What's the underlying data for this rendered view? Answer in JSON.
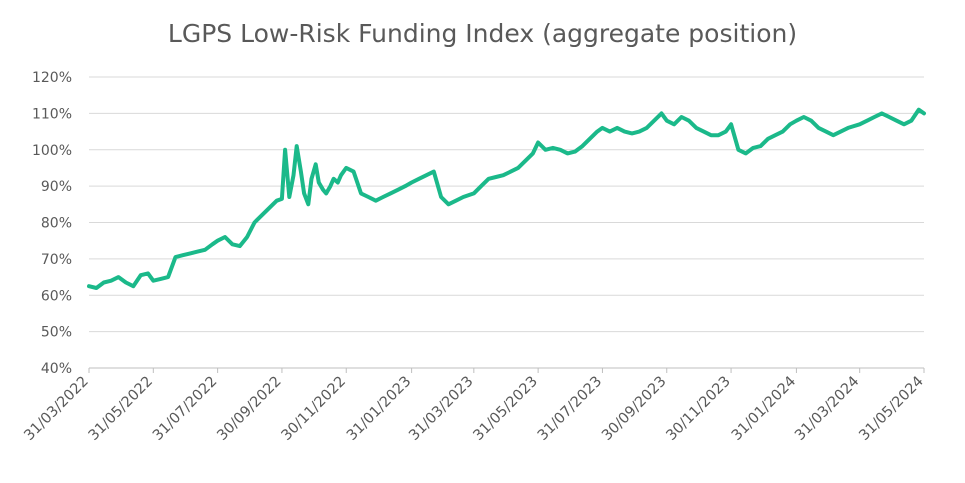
{
  "chart_data": {
    "type": "line",
    "title": "LGPS Low-Risk Funding Index (aggregate position)",
    "xlabel": "",
    "ylabel": "",
    "ylim": [
      40,
      120
    ],
    "y_ticks": [
      "40%",
      "50%",
      "60%",
      "70%",
      "80%",
      "90%",
      "100%",
      "110%",
      "120%"
    ],
    "x_ticks": [
      "31/03/2022",
      "31/05/2022",
      "31/07/2022",
      "30/09/2022",
      "30/11/2022",
      "31/01/2023",
      "31/03/2023",
      "31/05/2023",
      "31/07/2023",
      "30/09/2023",
      "30/11/2023",
      "31/01/2024",
      "31/03/2024",
      "31/05/2024"
    ],
    "grid": true,
    "legend": "none",
    "line_color": "#1bb98a",
    "series": [
      {
        "x": [
          "31/03/2022",
          "07/04/2022",
          "14/04/2022",
          "21/04/2022",
          "28/04/2022",
          "05/05/2022",
          "12/05/2022",
          "19/05/2022",
          "26/05/2022",
          "31/05/2022",
          "07/06/2022",
          "14/06/2022",
          "21/06/2022",
          "28/06/2022",
          "05/07/2022",
          "12/07/2022",
          "19/07/2022",
          "26/07/2022",
          "31/07/2022",
          "07/08/2022",
          "14/08/2022",
          "21/08/2022",
          "28/08/2022",
          "04/09/2022",
          "11/09/2022",
          "18/09/2022",
          "25/09/2022",
          "30/09/2022",
          "03/10/2022",
          "07/10/2022",
          "11/10/2022",
          "14/10/2022",
          "18/10/2022",
          "21/10/2022",
          "25/10/2022",
          "28/10/2022",
          "01/11/2022",
          "04/11/2022",
          "08/11/2022",
          "11/11/2022",
          "15/11/2022",
          "18/11/2022",
          "22/11/2022",
          "25/11/2022",
          "30/11/2022",
          "07/12/2022",
          "14/12/2022",
          "21/12/2022",
          "28/12/2022",
          "04/01/2023",
          "11/01/2023",
          "18/01/2023",
          "25/01/2023",
          "31/01/2023",
          "07/02/2023",
          "14/02/2023",
          "21/02/2023",
          "28/02/2023",
          "07/03/2023",
          "14/03/2023",
          "21/03/2023",
          "31/03/2023",
          "07/04/2023",
          "14/04/2023",
          "21/04/2023",
          "28/04/2023",
          "05/05/2023",
          "12/05/2023",
          "19/05/2023",
          "26/05/2023",
          "31/05/2023",
          "07/06/2023",
          "14/06/2023",
          "21/06/2023",
          "28/06/2023",
          "05/07/2023",
          "12/07/2023",
          "19/07/2023",
          "26/07/2023",
          "31/07/2023",
          "07/08/2023",
          "14/08/2023",
          "21/08/2023",
          "28/08/2023",
          "04/09/2023",
          "11/09/2023",
          "18/09/2023",
          "25/09/2023",
          "30/09/2023",
          "07/10/2023",
          "14/10/2023",
          "21/10/2023",
          "28/10/2023",
          "04/11/2023",
          "11/11/2023",
          "18/11/2023",
          "25/11/2023",
          "30/11/2023",
          "07/12/2023",
          "14/12/2023",
          "21/12/2023",
          "28/12/2023",
          "04/01/2024",
          "11/01/2024",
          "18/01/2024",
          "25/01/2024",
          "31/01/2024",
          "07/02/2024",
          "14/02/2024",
          "21/02/2024",
          "28/02/2024",
          "06/03/2024",
          "13/03/2024",
          "20/03/2024",
          "31/03/2024",
          "07/04/2024",
          "14/04/2024",
          "21/04/2024",
          "28/04/2024",
          "05/05/2024",
          "12/05/2024",
          "19/05/2024",
          "26/05/2024",
          "31/05/2024"
        ],
        "values": [
          62.5,
          62,
          63.5,
          64,
          65,
          63.5,
          62.5,
          65.5,
          66,
          64,
          64.5,
          65,
          70.5,
          71,
          71.5,
          72,
          72.5,
          74,
          75,
          76,
          74,
          73.5,
          76,
          80,
          82,
          84,
          86,
          86.5,
          100,
          87,
          93,
          101,
          94,
          88,
          85,
          92,
          96,
          91,
          89,
          88,
          90,
          92,
          91,
          93,
          95,
          94,
          88,
          87,
          86,
          87,
          88,
          89,
          90,
          91,
          92,
          93,
          94,
          87,
          85,
          86,
          87,
          88,
          90,
          92,
          92.5,
          93,
          94,
          95,
          97,
          99,
          102,
          100,
          100.5,
          100,
          99,
          99.5,
          101,
          103,
          105,
          106,
          105,
          106,
          105,
          104.5,
          105,
          106,
          108,
          110,
          108,
          107,
          109,
          108,
          106,
          105,
          104,
          104,
          105,
          107,
          100,
          99,
          100.5,
          101,
          103,
          104,
          105,
          107,
          108,
          109,
          108,
          106,
          105,
          104,
          105,
          106,
          107,
          108,
          109,
          110,
          109,
          108,
          107,
          108,
          111,
          110
        ]
      }
    ]
  }
}
